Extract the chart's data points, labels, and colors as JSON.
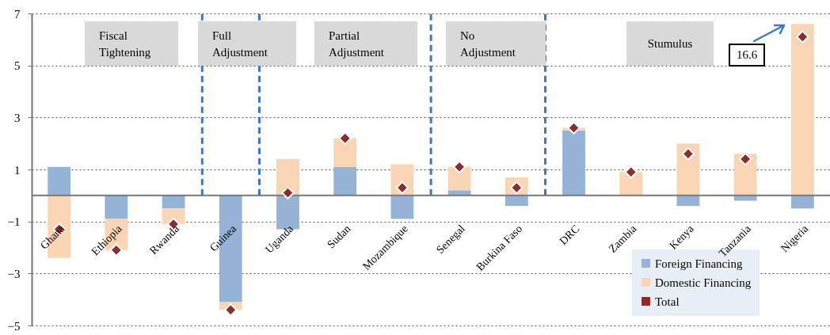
{
  "chart_data": {
    "type": "bar",
    "stacked": true,
    "categories": [
      "Ghana",
      "Ethiopia",
      "Rwanda",
      "Guinea",
      "Uganda",
      "Sudan",
      "Mozambique",
      "Senegal",
      "Burkina Faso",
      "DRC",
      "Zambia",
      "Kenya",
      "Tanzania",
      "Nigeria"
    ],
    "series": [
      {
        "name": "Foreign Financing",
        "color": "#94b3d7",
        "values": [
          1.1,
          -0.9,
          -0.5,
          -4.1,
          -1.3,
          1.1,
          -0.9,
          0.2,
          -0.4,
          2.5,
          0,
          -0.4,
          -0.2,
          -0.5
        ]
      },
      {
        "name": "Domestic Financing",
        "color": "#fad5b4",
        "values": [
          -2.4,
          -1.2,
          -0.6,
          -0.3,
          1.4,
          1.1,
          1.2,
          0.9,
          0.7,
          0.1,
          0.9,
          2.0,
          1.6,
          6.6
        ]
      },
      {
        "name": "Total",
        "type": "scatter",
        "marker": "diamond",
        "color": "#8e2b2b",
        "values": [
          -1.3,
          -2.1,
          -1.1,
          -4.4,
          0.1,
          2.2,
          0.3,
          1.1,
          0.3,
          2.6,
          0.9,
          1.6,
          1.4,
          6.1
        ]
      }
    ],
    "ylim": [
      -5,
      7
    ],
    "yticks": [
      -5,
      -3,
      -1,
      1,
      3,
      5,
      7
    ],
    "grid": "y",
    "legend": "bottom right",
    "ref_lines": [
      {
        "axis": "x",
        "value": "Guinea",
        "color": "#3f78c0",
        "line_style": "dashed"
      },
      {
        "axis": "x",
        "value": "Uganda",
        "color": "#3f78c0",
        "line_style": "dashed"
      },
      {
        "axis": "x",
        "value": "Senegal",
        "color": "#3f78c0",
        "line_style": "dashed"
      },
      {
        "axis": "x",
        "value": "DRC",
        "color": "#3f78c0",
        "line_style": "dashed"
      }
    ],
    "annotations": [
      "Fiscal Tightening",
      "Full Adjustment",
      "Partial Adjustment",
      "No Adjustment",
      "Stumulus",
      "16.6"
    ]
  }
}
